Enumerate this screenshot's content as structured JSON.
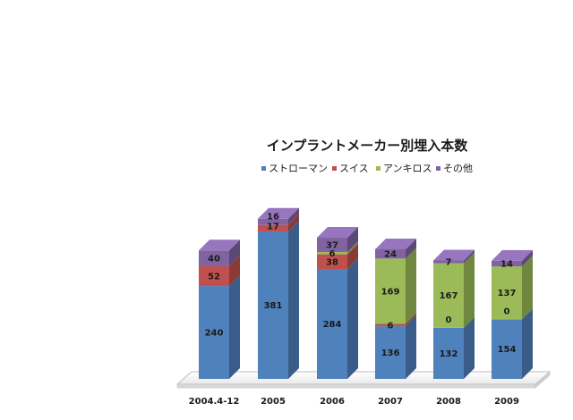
{
  "chart_data": {
    "type": "bar",
    "stacked": true,
    "title": "インプラントメーカー別埋入本数",
    "xlabel": "",
    "ylabel": "",
    "categories": [
      "2004.4-12",
      "2005",
      "2006",
      "2007",
      "2008",
      "2009"
    ],
    "series": [
      {
        "name": "ストローマン",
        "color": "#4f81bd",
        "values": [
          240,
          381,
          284,
          136,
          132,
          154
        ]
      },
      {
        "name": "スイス",
        "color": "#c0504d",
        "values": [
          52,
          17,
          38,
          6,
          0,
          0
        ]
      },
      {
        "name": "アンキロス",
        "color": "#9bbb59",
        "values": [
          0,
          0,
          6,
          169,
          167,
          137
        ]
      },
      {
        "name": "その他",
        "color": "#8064a2",
        "values": [
          40,
          16,
          37,
          24,
          7,
          14
        ]
      }
    ],
    "data_labels": [
      [
        240,
        52,
        null,
        40
      ],
      [
        381,
        17,
        null,
        16
      ],
      [
        284,
        38,
        6,
        37
      ],
      [
        136,
        6,
        169,
        24
      ],
      [
        132,
        0,
        167,
        7
      ],
      [
        154,
        0,
        137,
        14
      ]
    ],
    "legend_position": "top",
    "grid": false,
    "three_d": true
  }
}
